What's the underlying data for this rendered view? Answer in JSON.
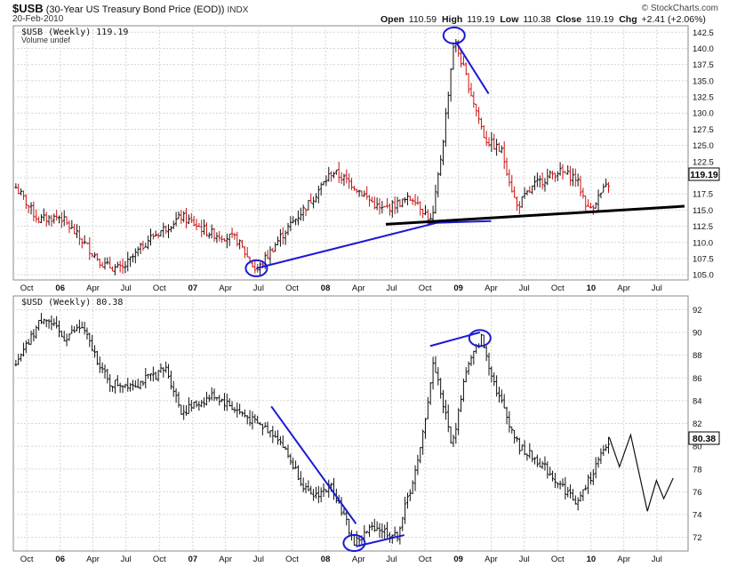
{
  "header": {
    "symbol": "$USB",
    "title": "(30-Year US Treasury Bond Price (EOD))",
    "exchange": "INDX",
    "date": "20-Feb-2010",
    "brand": "© StockCharts.com",
    "open_label": "Open",
    "open": "110.59",
    "high_label": "High",
    "high": "119.19",
    "low_label": "Low",
    "low": "110.38",
    "close_label": "Close",
    "close": "119.19",
    "chg_label": "Chg",
    "chg": "+2.41 (+2.06%)"
  },
  "colors": {
    "panel_bg": "#ffffff",
    "page_bg": "#ffffff",
    "grid": "#d4d4d4",
    "up_bar": "#111111",
    "down_bar": "#cc1111",
    "annotation_blue": "#1a1ad4",
    "trendline_black": "#000000",
    "last_value_box": "#ffffff"
  },
  "chart_data": [
    {
      "type": "ohlc",
      "name": "$USB (Weekly)",
      "legend_label": "$USB (Weekly) 119.19",
      "volume_note": "Volume undef",
      "last_value": "119.19",
      "y_ticks": [
        105.0,
        107.5,
        110.0,
        112.5,
        115.0,
        117.5,
        120.0,
        122.5,
        125.0,
        127.5,
        130.0,
        132.5,
        135.0,
        137.5,
        140.0,
        142.5
      ],
      "ylim": [
        104.2,
        143.5
      ],
      "x_ticks": [
        "Oct",
        "06",
        "Apr",
        "Jul",
        "Oct",
        "07",
        "Apr",
        "Jul",
        "Oct",
        "08",
        "Apr",
        "Jul",
        "Oct",
        "09",
        "Apr",
        "Jul",
        "Oct",
        "10",
        "Apr",
        "Jul"
      ],
      "anchors": [
        {
          "date": "2005-09-01",
          "value": 118.5
        },
        {
          "date": "2005-11-01",
          "value": 113.5
        },
        {
          "date": "2006-01-01",
          "value": 114.0
        },
        {
          "date": "2006-05-01",
          "value": 106.5
        },
        {
          "date": "2006-06-20",
          "value": 105.8
        },
        {
          "date": "2006-09-01",
          "value": 110.5
        },
        {
          "date": "2006-12-01",
          "value": 114.0
        },
        {
          "date": "2007-02-15",
          "value": 111.5
        },
        {
          "date": "2007-05-01",
          "value": 110.5
        },
        {
          "date": "2007-06-25",
          "value": 105.5
        },
        {
          "date": "2007-09-01",
          "value": 111.0
        },
        {
          "date": "2007-11-15",
          "value": 116.0
        },
        {
          "date": "2008-01-20",
          "value": 121.0
        },
        {
          "date": "2008-03-15",
          "value": 119.0
        },
        {
          "date": "2008-06-01",
          "value": 115.0
        },
        {
          "date": "2008-09-01",
          "value": 117.0
        },
        {
          "date": "2008-10-20",
          "value": 113.0
        },
        {
          "date": "2008-11-20",
          "value": 126.0
        },
        {
          "date": "2008-12-20",
          "value": 141.5
        },
        {
          "date": "2009-01-25",
          "value": 135.0
        },
        {
          "date": "2009-03-15",
          "value": 126.0
        },
        {
          "date": "2009-05-01",
          "value": 124.0
        },
        {
          "date": "2009-06-10",
          "value": 115.5
        },
        {
          "date": "2009-08-01",
          "value": 119.0
        },
        {
          "date": "2009-10-01",
          "value": 121.0
        },
        {
          "date": "2009-11-20",
          "value": 120.0
        },
        {
          "date": "2009-12-25",
          "value": 115.0
        },
        {
          "date": "2010-02-20",
          "value": 119.19
        }
      ],
      "annotations": [
        {
          "kind": "ellipse",
          "date": "2007-06-25",
          "value": 106.0
        },
        {
          "kind": "ellipse",
          "date": "2008-12-20",
          "value": 142.0
        },
        {
          "kind": "line",
          "color": "blue",
          "from": {
            "date": "2007-06-25",
            "value": 106.0
          },
          "to": {
            "date": "2008-12-05",
            "value": 113.5
          }
        },
        {
          "kind": "line",
          "color": "blue",
          "from": {
            "date": "2008-10-10",
            "value": 113.0
          },
          "to": {
            "date": "2009-04-01",
            "value": 113.3
          }
        },
        {
          "kind": "line",
          "color": "blue",
          "from": {
            "date": "2008-12-25",
            "value": 141.0
          },
          "to": {
            "date": "2009-03-25",
            "value": 133.0
          }
        },
        {
          "kind": "line",
          "color": "black",
          "from": {
            "date": "2008-06-15",
            "value": 112.8
          },
          "to": {
            "date": "2010-09-15",
            "value": 115.6
          }
        }
      ]
    },
    {
      "type": "ohlc",
      "name": "$USD (Weekly)",
      "legend_label": "$USD (Weekly) 80.38",
      "last_value": "80.38",
      "y_ticks": [
        72,
        74,
        76,
        78,
        80,
        82,
        84,
        86,
        88,
        90,
        92
      ],
      "ylim": [
        70.8,
        93.2
      ],
      "x_ticks": [
        "Oct",
        "06",
        "Apr",
        "Jul",
        "Oct",
        "07",
        "Apr",
        "Jul",
        "Oct",
        "08",
        "Apr",
        "Jul",
        "Oct",
        "09",
        "Apr",
        "Jul",
        "Oct",
        "10",
        "Apr",
        "Jul"
      ],
      "anchors": [
        {
          "date": "2005-09-01",
          "value": 87.0
        },
        {
          "date": "2005-11-15",
          "value": 91.5
        },
        {
          "date": "2006-01-10",
          "value": 89.5
        },
        {
          "date": "2006-03-01",
          "value": 90.5
        },
        {
          "date": "2006-05-15",
          "value": 85.5
        },
        {
          "date": "2006-08-01",
          "value": 85.5
        },
        {
          "date": "2006-10-20",
          "value": 86.8
        },
        {
          "date": "2006-12-01",
          "value": 83.0
        },
        {
          "date": "2007-03-01",
          "value": 84.5
        },
        {
          "date": "2007-06-15",
          "value": 82.2
        },
        {
          "date": "2007-08-20",
          "value": 81.0
        },
        {
          "date": "2007-11-20",
          "value": 75.5
        },
        {
          "date": "2008-01-20",
          "value": 76.5
        },
        {
          "date": "2008-03-20",
          "value": 71.5
        },
        {
          "date": "2008-05-15",
          "value": 73.0
        },
        {
          "date": "2008-07-15",
          "value": 72.0
        },
        {
          "date": "2008-09-15",
          "value": 79.0
        },
        {
          "date": "2008-10-25",
          "value": 87.5
        },
        {
          "date": "2008-12-15",
          "value": 80.0
        },
        {
          "date": "2009-01-20",
          "value": 86.5
        },
        {
          "date": "2009-03-05",
          "value": 89.5
        },
        {
          "date": "2009-04-15",
          "value": 85.0
        },
        {
          "date": "2009-06-15",
          "value": 80.0
        },
        {
          "date": "2009-08-15",
          "value": 78.5
        },
        {
          "date": "2009-11-25",
          "value": 75.0
        },
        {
          "date": "2010-01-10",
          "value": 78.0
        },
        {
          "date": "2010-02-20",
          "value": 80.38
        }
      ],
      "projection": [
        {
          "date": "2010-02-20",
          "value": 80.8
        },
        {
          "date": "2010-03-20",
          "value": 78.2
        },
        {
          "date": "2010-04-20",
          "value": 81.0
        },
        {
          "date": "2010-06-05",
          "value": 74.3
        },
        {
          "date": "2010-06-30",
          "value": 77.0
        },
        {
          "date": "2010-07-20",
          "value": 75.4
        },
        {
          "date": "2010-08-15",
          "value": 77.2
        }
      ],
      "annotations": [
        {
          "kind": "ellipse",
          "date": "2008-03-20",
          "value": 71.5
        },
        {
          "kind": "ellipse",
          "date": "2009-03-01",
          "value": 89.5
        },
        {
          "kind": "line",
          "color": "blue",
          "from": {
            "date": "2007-08-05",
            "value": 83.5
          },
          "to": {
            "date": "2008-03-25",
            "value": 73.2
          }
        },
        {
          "kind": "line",
          "color": "blue",
          "from": {
            "date": "2008-03-25",
            "value": 71.2
          },
          "to": {
            "date": "2008-08-05",
            "value": 72.2
          }
        },
        {
          "kind": "line",
          "color": "blue",
          "from": {
            "date": "2008-10-15",
            "value": 88.8
          },
          "to": {
            "date": "2009-03-01",
            "value": 90.0
          }
        }
      ]
    }
  ]
}
